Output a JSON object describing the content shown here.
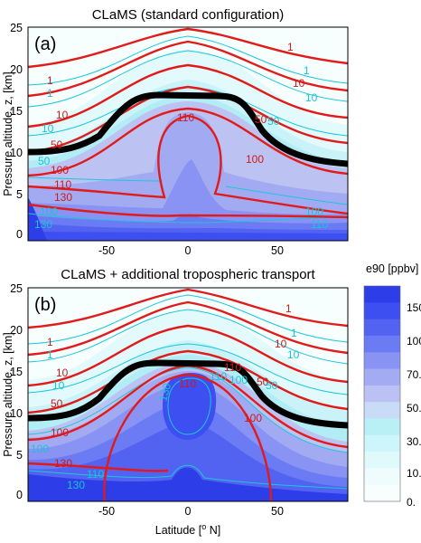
{
  "chart_data": [
    {
      "type": "heatmap",
      "title": "CLaMS (standard configuration)",
      "panel_label": "(a)",
      "xlabel": "",
      "ylabel": "Pressure altitude, z, [km]",
      "xlim": [
        -90,
        90
      ],
      "ylim": [
        -0.5,
        25
      ],
      "xticks": [
        "-50",
        "0",
        "50"
      ],
      "yticks": [
        "0",
        "5",
        "10",
        "15",
        "20",
        "25"
      ],
      "red_contour_labels": [
        "1",
        "10",
        "50",
        "100",
        "110",
        "130",
        "1",
        "10",
        "50",
        "100",
        "110"
      ],
      "cyan_contour_labels": [
        "1",
        "10",
        "50",
        "100",
        "130",
        "1",
        "10",
        "50",
        "100",
        "110"
      ]
    },
    {
      "type": "heatmap",
      "title": "CLaMS + additional tropospheric transport",
      "panel_label": "(b)",
      "xlabel": "Latitude [",
      "xlabel_sup": "o",
      "xlabel_end": " N]",
      "ylabel": "Pressure altitude, z, [km]",
      "xlim": [
        -90,
        90
      ],
      "ylim": [
        -0.5,
        25
      ],
      "xticks": [
        "-50",
        "0",
        "50"
      ],
      "yticks": [
        "0",
        "5",
        "10",
        "15",
        "20",
        "25"
      ],
      "red_contour_labels": [
        "1",
        "10",
        "50",
        "100",
        "130",
        "110",
        "1",
        "10",
        "50",
        "100",
        "110"
      ],
      "cyan_contour_labels": [
        "1",
        "10",
        "100",
        "110",
        "130",
        "130",
        "1",
        "10",
        "50",
        "100",
        "110"
      ]
    }
  ],
  "colorbar": {
    "title": "e90 [ppbv]",
    "tick_labels": [
      "150.",
      "100.",
      "70.",
      "50.",
      "30.",
      "10.",
      "0."
    ],
    "levels": [
      "#2d3ee8",
      "#3d4ff0",
      "#5263f2",
      "#6b7bf3",
      "#8893f3",
      "#a3abf2",
      "#bcc1f3",
      "#c8dcf7",
      "#b9f0f6",
      "#cdf6fa",
      "#e0fafc",
      "#eefcfd",
      "#f8fefe"
    ]
  }
}
